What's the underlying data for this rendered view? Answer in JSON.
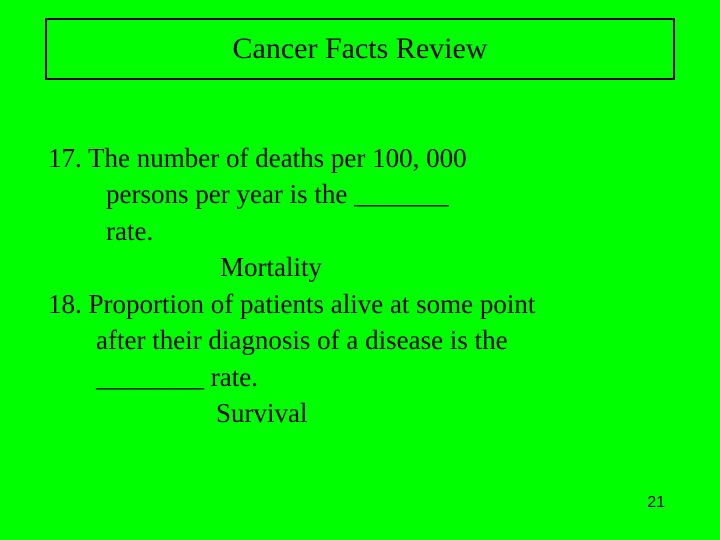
{
  "slide": {
    "background_color": "#00ff00",
    "title_border_color": "#000000",
    "text_color": "#000000",
    "title_fontsize": 30,
    "body_fontsize": 27,
    "pagenum_fontsize": 16
  },
  "title": "Cancer Facts Review",
  "q17": {
    "line1": "17. The number of deaths per 100, 000",
    "line2": "persons per year is the _______",
    "line3": "rate.",
    "answer": "Mortality"
  },
  "q18": {
    "line1": "18. Proportion of patients alive at some point",
    "line2": "after their diagnosis of a disease is the",
    "line3": "________ rate.",
    "answer": "Survival"
  },
  "page_number": "21"
}
